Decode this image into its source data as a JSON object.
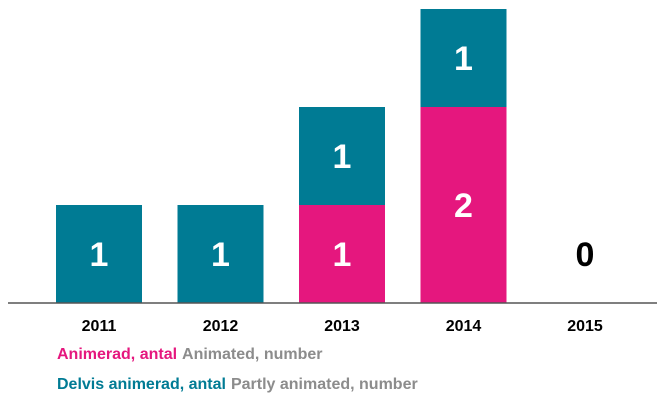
{
  "chart_data": {
    "type": "bar",
    "stacked": true,
    "categories": [
      "2011",
      "2012",
      "2013",
      "2014",
      "2015"
    ],
    "series": [
      {
        "name": "Animerad, antal",
        "subtitle": "Animated, number",
        "color": "#e5177e",
        "values": [
          0,
          0,
          1,
          2,
          0
        ]
      },
      {
        "name": "Delvis animerad, antal",
        "subtitle": "Partly animated, number",
        "color": "#007b94",
        "values": [
          1,
          1,
          1,
          1,
          0
        ]
      }
    ],
    "totals": [
      1,
      1,
      2,
      3,
      0
    ],
    "ylim": [
      0,
      3
    ],
    "grid": false,
    "legend_position": "bottom-left",
    "title": "",
    "xlabel": "",
    "ylabel": ""
  }
}
